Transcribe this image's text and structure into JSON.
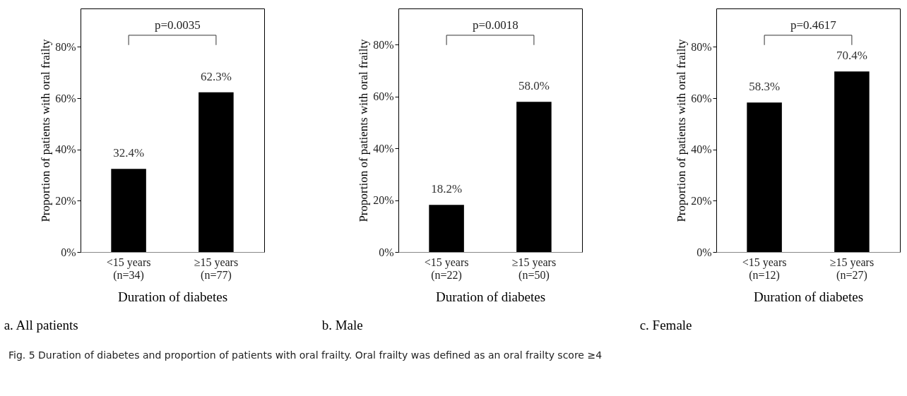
{
  "chart_data": [
    {
      "type": "bar",
      "title": "a. All patients",
      "xlabel": "Duration of diabetes",
      "ylabel": "Proportion of patients with oral frailty",
      "categories": [
        "<15 years\n(n=34)",
        "≥15 years\n(n=77)"
      ],
      "values": [
        32.4,
        62.3
      ],
      "value_labels": [
        "32.4%",
        "62.3%"
      ],
      "color": "#000000",
      "ylim": [
        0,
        95
      ],
      "yticks": [
        {
          "value": 0,
          "label": "0%"
        },
        {
          "value": 20,
          "label": "20%"
        },
        {
          "value": 40,
          "label": "40%"
        },
        {
          "value": 60,
          "label": "60%"
        },
        {
          "value": 80,
          "label": "80%"
        }
      ],
      "annotations": [
        "p=0.0035"
      ]
    },
    {
      "type": "bar",
      "title": "b. Male",
      "xlabel": "Duration of diabetes",
      "ylabel": "Proportion of patients with oral frailty",
      "categories": [
        "<15 years\n(n=22)",
        "≥15 years\n(n=50)"
      ],
      "values": [
        18.2,
        58.0
      ],
      "value_labels": [
        "18.2%",
        "58.0%"
      ],
      "color": "#000000",
      "ylim": [
        0,
        94
      ],
      "yticks": [
        {
          "value": 0,
          "label": "0%"
        },
        {
          "value": 20,
          "label": "20%"
        },
        {
          "value": 40,
          "label": "40%"
        },
        {
          "value": 60,
          "label": "60%"
        },
        {
          "value": 80,
          "label": "80%"
        }
      ],
      "annotations": [
        "p=0.0018"
      ]
    },
    {
      "type": "bar",
      "title": "c. Female",
      "xlabel": "Duration of diabetes",
      "ylabel": "Proportion of patients with oral frailty",
      "categories": [
        "<15 years\n(n=12)",
        "≥15 years\n(n=27)"
      ],
      "values": [
        58.3,
        70.4
      ],
      "value_labels": [
        "58.3%",
        "70.4%"
      ],
      "color": "#000000",
      "ylim": [
        0,
        95
      ],
      "yticks": [
        {
          "value": 0,
          "label": "0%"
        },
        {
          "value": 20,
          "label": "20%"
        },
        {
          "value": 40,
          "label": "40%"
        },
        {
          "value": 60,
          "label": "60%"
        },
        {
          "value": 80,
          "label": "80%"
        }
      ],
      "annotations": [
        "p=0.4617",
        "Fig. 5  Duration of diabetes and proportion of patients with oral frailty. Oral frailty was defined as an oral frailty score ≥4"
      ]
    }
  ]
}
